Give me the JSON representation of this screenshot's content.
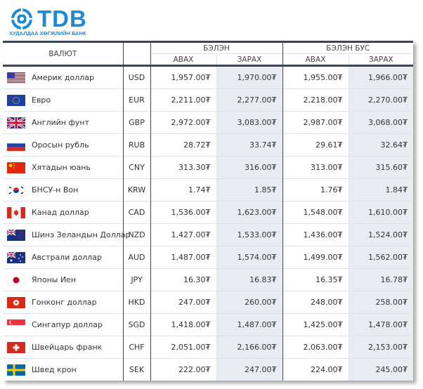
{
  "logo": {
    "name": "TDB",
    "subtitle": "ХУДАЛДАА ХӨГЖЛИЙН БАНК",
    "color": "#1e8ad6"
  },
  "headers": {
    "currency": "ВАЛЮТ",
    "cash": "БЭЛЭН",
    "noncash": "БЭЛЭН БУС",
    "buy": "АВАХ",
    "sell": "ЗАРАХ"
  },
  "rows": [
    {
      "flag": "us-flag",
      "name": "Америк доллар",
      "code": "USD",
      "cash_buy": "1,957.00₮",
      "cash_sell": "1,970.00₮",
      "noncash_buy": "1,955.00₮",
      "noncash_sell": "1,966.00₮"
    },
    {
      "flag": "eu-flag",
      "name": "Евро",
      "code": "EUR",
      "cash_buy": "2,211.00₮",
      "cash_sell": "2,277.00₮",
      "noncash_buy": "2,218.00₮",
      "noncash_sell": "2,270.00₮"
    },
    {
      "flag": "gb-flag",
      "name": "Английн фунт",
      "code": "GBP",
      "cash_buy": "2,972.00₮",
      "cash_sell": "3,083.00₮",
      "noncash_buy": "2,987.00₮",
      "noncash_sell": "3,068.00₮"
    },
    {
      "flag": "ru-flag",
      "name": "Оросын рубль",
      "code": "RUB",
      "cash_buy": "28.72₮",
      "cash_sell": "33.74₮",
      "noncash_buy": "29.61₮",
      "noncash_sell": "32.64₮"
    },
    {
      "flag": "cn-flag",
      "name": "Хятадын юань",
      "code": "CNY",
      "cash_buy": "313.30₮",
      "cash_sell": "316.00₮",
      "noncash_buy": "313.00₮",
      "noncash_sell": "315.60₮"
    },
    {
      "flag": "kr-flag",
      "name": "БНСУ-н Вон",
      "code": "KRW",
      "cash_buy": "1.74₮",
      "cash_sell": "1.85₮",
      "noncash_buy": "1.76₮",
      "noncash_sell": "1.84₮"
    },
    {
      "flag": "ca-flag",
      "name": "Канад доллар",
      "code": "CAD",
      "cash_buy": "1,536.00₮",
      "cash_sell": "1,623.00₮",
      "noncash_buy": "1,548.00₮",
      "noncash_sell": "1,610.00₮"
    },
    {
      "flag": "nz-flag",
      "name": "Шинэ Зеландын Доллар",
      "code": "NZD",
      "cash_buy": "1,427.00₮",
      "cash_sell": "1,533.00₮",
      "noncash_buy": "1,436.00₮",
      "noncash_sell": "1,524.00₮"
    },
    {
      "flag": "au-flag",
      "name": "Австрали доллар",
      "code": "AUD",
      "cash_buy": "1,487.00₮",
      "cash_sell": "1,574.00₮",
      "noncash_buy": "1,499.00₮",
      "noncash_sell": "1,562.00₮"
    },
    {
      "flag": "jp-flag",
      "name": "Японы Иен",
      "code": "JPY",
      "cash_buy": "16.30₮",
      "cash_sell": "16.83₮",
      "noncash_buy": "16.35₮",
      "noncash_sell": "16.78₮"
    },
    {
      "flag": "hk-flag",
      "name": "Гонконг доллар",
      "code": "HKD",
      "cash_buy": "247.00₮",
      "cash_sell": "260.00₮",
      "noncash_buy": "248.00₮",
      "noncash_sell": "258.00₮"
    },
    {
      "flag": "sg-flag",
      "name": "Сингапур доллар",
      "code": "SGD",
      "cash_buy": "1,418.00₮",
      "cash_sell": "1,487.00₮",
      "noncash_buy": "1,425.00₮",
      "noncash_sell": "1,478.00₮"
    },
    {
      "flag": "ch-flag",
      "name": "Швейцарь франк",
      "code": "CHF",
      "cash_buy": "2,051.00₮",
      "cash_sell": "2,166.00₮",
      "noncash_buy": "2,063.00₮",
      "noncash_sell": "2,153.00₮"
    },
    {
      "flag": "se-flag",
      "name": "Швед крон",
      "code": "SEK",
      "cash_buy": "222.00₮",
      "cash_sell": "247.00₮",
      "noncash_buy": "224.00₮",
      "noncash_sell": "245.00₮"
    }
  ]
}
